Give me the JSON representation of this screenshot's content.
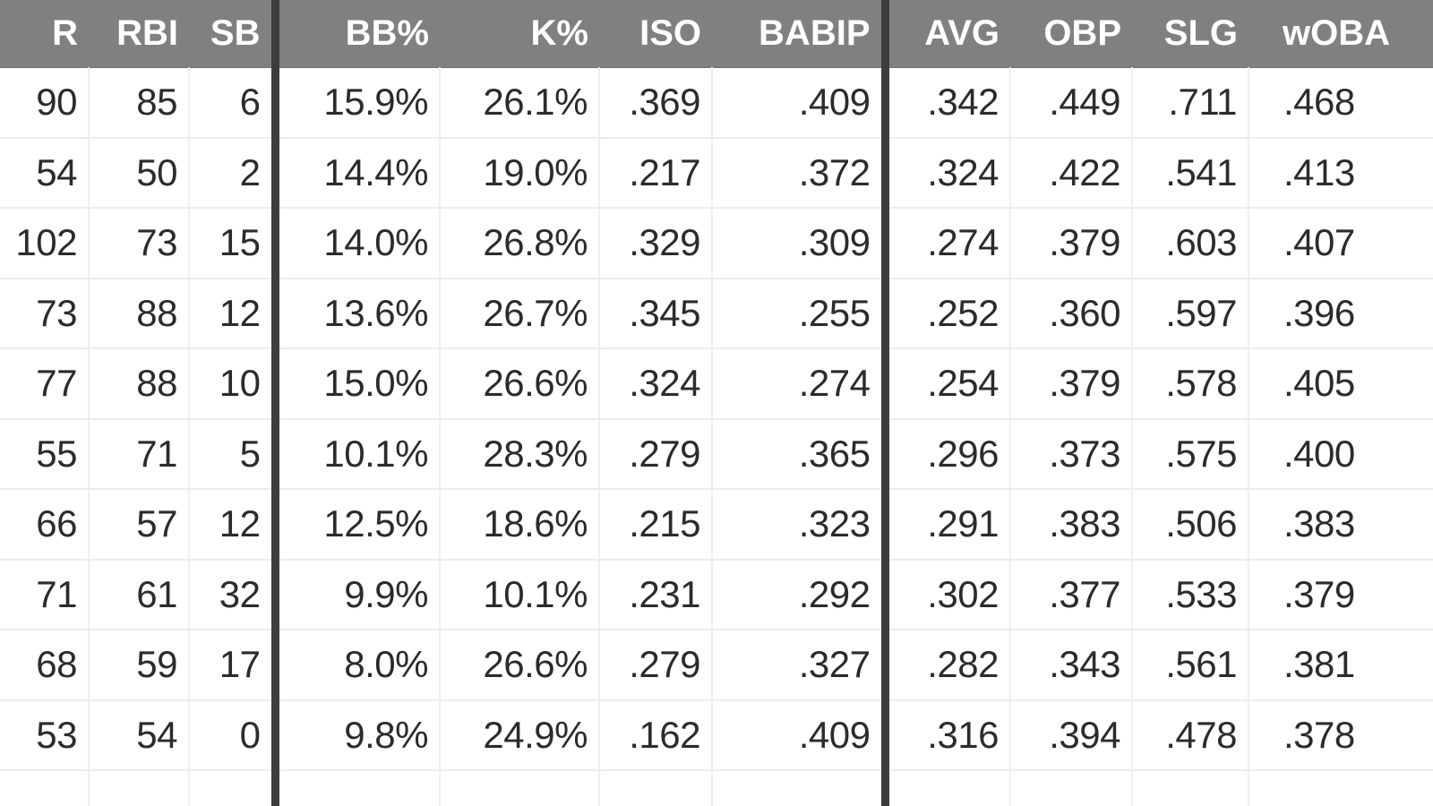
{
  "table": {
    "headers": [
      "R",
      "RBI",
      "SB",
      "BB%",
      "K%",
      "ISO",
      "BABIP",
      "AVG",
      "OBP",
      "SLG",
      "wOBA"
    ],
    "rows": [
      [
        "90",
        "85",
        "6",
        "15.9%",
        "26.1%",
        ".369",
        ".409",
        ".342",
        ".449",
        ".711",
        ".468"
      ],
      [
        "54",
        "50",
        "2",
        "14.4%",
        "19.0%",
        ".217",
        ".372",
        ".324",
        ".422",
        ".541",
        ".413"
      ],
      [
        "102",
        "73",
        "15",
        "14.0%",
        "26.8%",
        ".329",
        ".309",
        ".274",
        ".379",
        ".603",
        ".407"
      ],
      [
        "73",
        "88",
        "12",
        "13.6%",
        "26.7%",
        ".345",
        ".255",
        ".252",
        ".360",
        ".597",
        ".396"
      ],
      [
        "77",
        "88",
        "10",
        "15.0%",
        "26.6%",
        ".324",
        ".274",
        ".254",
        ".379",
        ".578",
        ".405"
      ],
      [
        "55",
        "71",
        "5",
        "10.1%",
        "28.3%",
        ".279",
        ".365",
        ".296",
        ".373",
        ".575",
        ".400"
      ],
      [
        "66",
        "57",
        "12",
        "12.5%",
        "18.6%",
        ".215",
        ".323",
        ".291",
        ".383",
        ".506",
        ".383"
      ],
      [
        "71",
        "61",
        "32",
        "9.9%",
        "10.1%",
        ".231",
        ".292",
        ".302",
        ".377",
        ".533",
        ".379"
      ],
      [
        "68",
        "59",
        "17",
        "8.0%",
        "26.6%",
        ".279",
        ".327",
        ".282",
        ".343",
        ".561",
        ".381"
      ],
      [
        "53",
        "54",
        "0",
        "9.8%",
        "24.9%",
        ".162",
        ".409",
        ".316",
        ".394",
        ".478",
        ".378"
      ]
    ]
  },
  "colors": {
    "header_background": "#808080",
    "header_text": "#ffffff",
    "group_divider": "#3c3c3c",
    "cell_text": "#2b2b2b",
    "gridline": "#ececec"
  }
}
